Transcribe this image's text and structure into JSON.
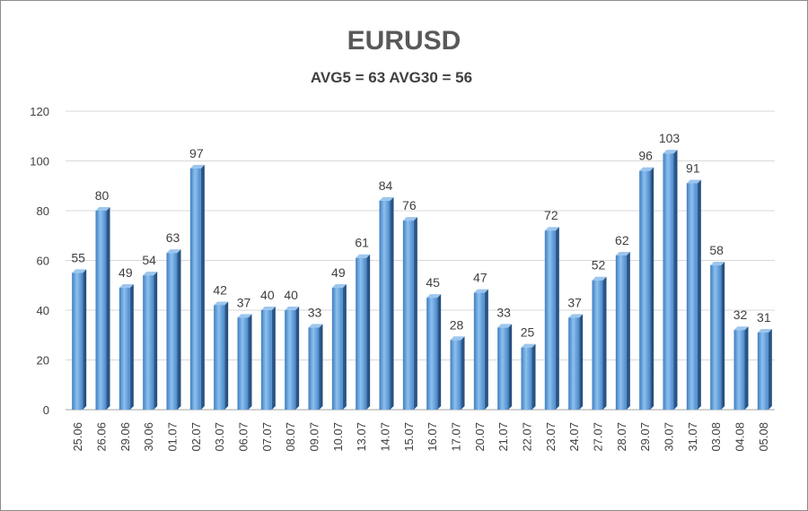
{
  "chart_data": {
    "type": "bar",
    "title": "EURUSD",
    "subtitle": "AVG5 = 63 AVG30 = 56",
    "xlabel": "",
    "ylabel": "",
    "ylim": [
      0,
      120
    ],
    "yticks": [
      0,
      20,
      40,
      60,
      80,
      100,
      120
    ],
    "grid": true,
    "bar_color": "#5b9bd5",
    "categories": [
      "25.06",
      "26.06",
      "29.06",
      "30.06",
      "01.07",
      "02.07",
      "03.07",
      "06.07",
      "07.07",
      "08.07",
      "09.07",
      "10.07",
      "13.07",
      "14.07",
      "15.07",
      "16.07",
      "17.07",
      "20.07",
      "21.07",
      "22.07",
      "23.07",
      "24.07",
      "27.07",
      "28.07",
      "29.07",
      "30.07",
      "31.07",
      "03.08",
      "04.08",
      "05.08"
    ],
    "values": [
      55,
      80,
      49,
      54,
      63,
      97,
      42,
      37,
      40,
      40,
      33,
      49,
      61,
      84,
      76,
      45,
      28,
      47,
      33,
      25,
      72,
      37,
      52,
      62,
      96,
      103,
      91,
      58,
      32,
      31
    ]
  }
}
